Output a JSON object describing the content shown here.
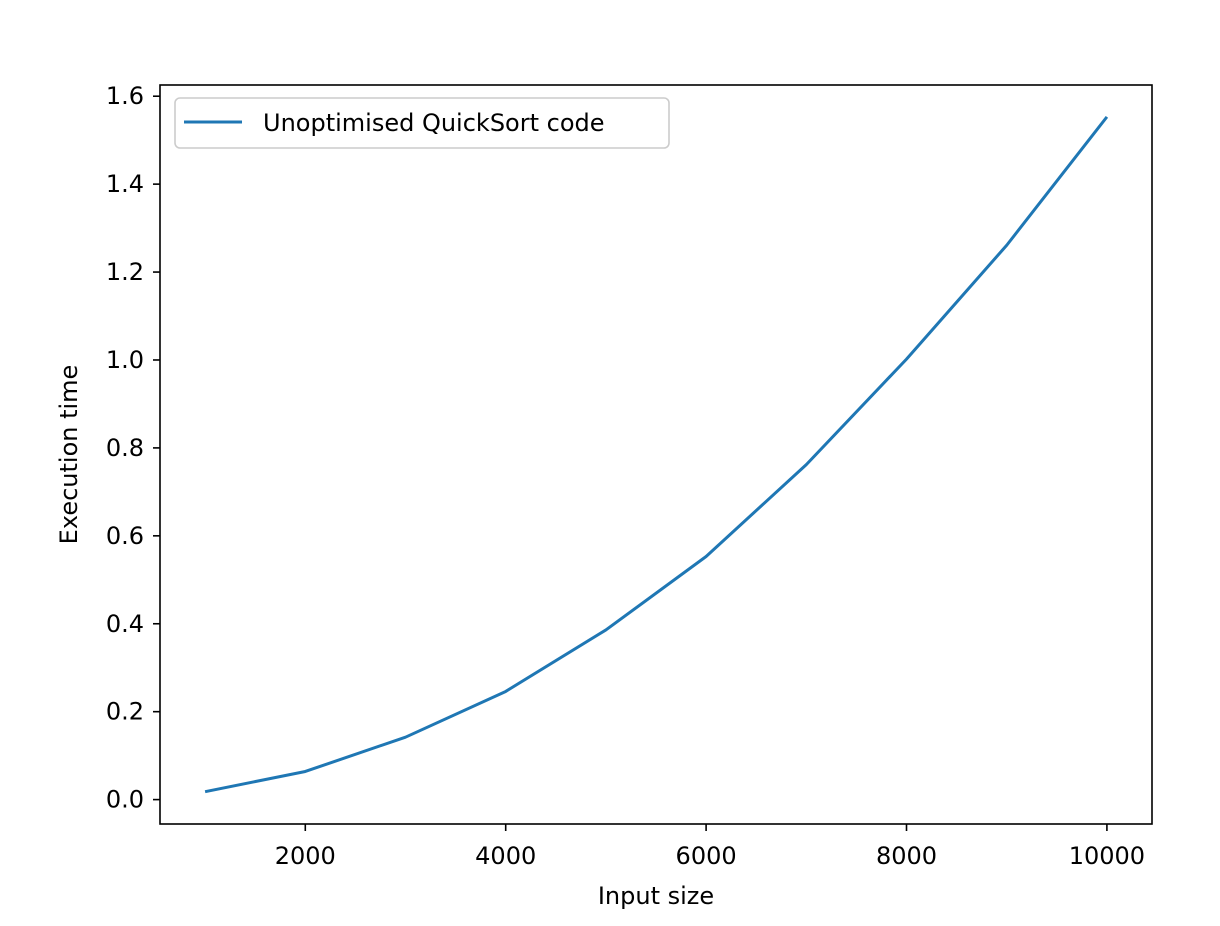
{
  "chart_data": {
    "type": "line",
    "title": "",
    "xlabel": "Input size",
    "ylabel": "Execution time",
    "xlim": [
      550,
      10450
    ],
    "ylim": [
      -0.0555,
      1.6255
    ],
    "xticks": [
      2000,
      4000,
      6000,
      8000,
      10000
    ],
    "xtick_labels": [
      "2000",
      "4000",
      "6000",
      "8000",
      "10000"
    ],
    "yticks": [
      0.0,
      0.2,
      0.4,
      0.6,
      0.8,
      1.0,
      1.2,
      1.4,
      1.6
    ],
    "ytick_labels": [
      "0.0",
      "0.2",
      "0.4",
      "0.6",
      "0.8",
      "1.0",
      "1.2",
      "1.4",
      "1.6"
    ],
    "grid": false,
    "legend_position": "upper-left",
    "series": [
      {
        "name": "Unoptimised QuickSort code",
        "color": "#1f77b4",
        "x": [
          1000,
          2000,
          3000,
          4000,
          5000,
          6000,
          7000,
          8000,
          9000,
          10000
        ],
        "y": [
          0.018,
          0.064,
          0.142,
          0.246,
          0.386,
          0.553,
          0.762,
          1.002,
          1.261,
          1.553
        ]
      }
    ]
  }
}
